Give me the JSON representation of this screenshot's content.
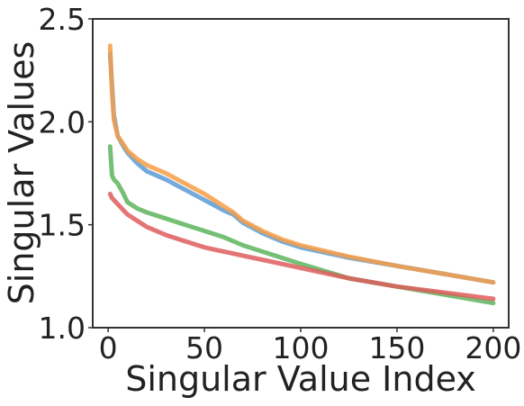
{
  "chart_data": {
    "type": "line",
    "title": "",
    "xlabel": "Singular Value Index",
    "ylabel": "Singular Values",
    "xlim": [
      -8,
      208
    ],
    "ylim": [
      1.0,
      2.5
    ],
    "xticks": [
      0,
      50,
      100,
      150,
      200
    ],
    "xtick_labels": [
      "0",
      "50",
      "100",
      "150",
      "200"
    ],
    "yticks": [
      1.0,
      1.5,
      2.0,
      2.5
    ],
    "ytick_labels": [
      "1.0",
      "1.5",
      "2.0",
      "2.5"
    ],
    "grid": false,
    "legend": "none",
    "series": [
      {
        "color": "#5B9BD5",
        "x": [
          1,
          2,
          3,
          5,
          8,
          10,
          15,
          20,
          25,
          30,
          40,
          50,
          60,
          65,
          70,
          80,
          90,
          100,
          125,
          150,
          175,
          200
        ],
        "y": [
          2.33,
          2.18,
          2.03,
          1.93,
          1.88,
          1.85,
          1.8,
          1.76,
          1.74,
          1.72,
          1.67,
          1.62,
          1.57,
          1.55,
          1.51,
          1.46,
          1.42,
          1.39,
          1.34,
          1.3,
          1.26,
          1.22
        ]
      },
      {
        "color": "#F79D46",
        "x": [
          1,
          2,
          3,
          5,
          8,
          10,
          15,
          20,
          25,
          30,
          40,
          50,
          60,
          65,
          70,
          80,
          90,
          100,
          125,
          150,
          175,
          200
        ],
        "y": [
          2.37,
          2.15,
          2.01,
          1.93,
          1.89,
          1.86,
          1.82,
          1.79,
          1.77,
          1.75,
          1.7,
          1.65,
          1.59,
          1.56,
          1.52,
          1.47,
          1.43,
          1.4,
          1.345,
          1.3,
          1.26,
          1.22
        ]
      },
      {
        "color": "#5DB55D",
        "x": [
          1,
          2,
          3,
          5,
          8,
          10,
          15,
          20,
          30,
          40,
          50,
          60,
          70,
          80,
          90,
          100,
          125,
          150,
          175,
          200
        ],
        "y": [
          1.88,
          1.74,
          1.72,
          1.7,
          1.65,
          1.61,
          1.58,
          1.56,
          1.53,
          1.5,
          1.47,
          1.44,
          1.4,
          1.37,
          1.34,
          1.31,
          1.24,
          1.2,
          1.16,
          1.12
        ]
      },
      {
        "color": "#DE5D5D",
        "x": [
          1,
          2,
          3,
          5,
          8,
          10,
          15,
          20,
          30,
          40,
          50,
          60,
          70,
          80,
          90,
          100,
          125,
          150,
          175,
          200
        ],
        "y": [
          1.65,
          1.63,
          1.62,
          1.6,
          1.57,
          1.55,
          1.52,
          1.49,
          1.45,
          1.42,
          1.39,
          1.37,
          1.35,
          1.33,
          1.31,
          1.29,
          1.24,
          1.2,
          1.17,
          1.14
        ]
      }
    ]
  }
}
